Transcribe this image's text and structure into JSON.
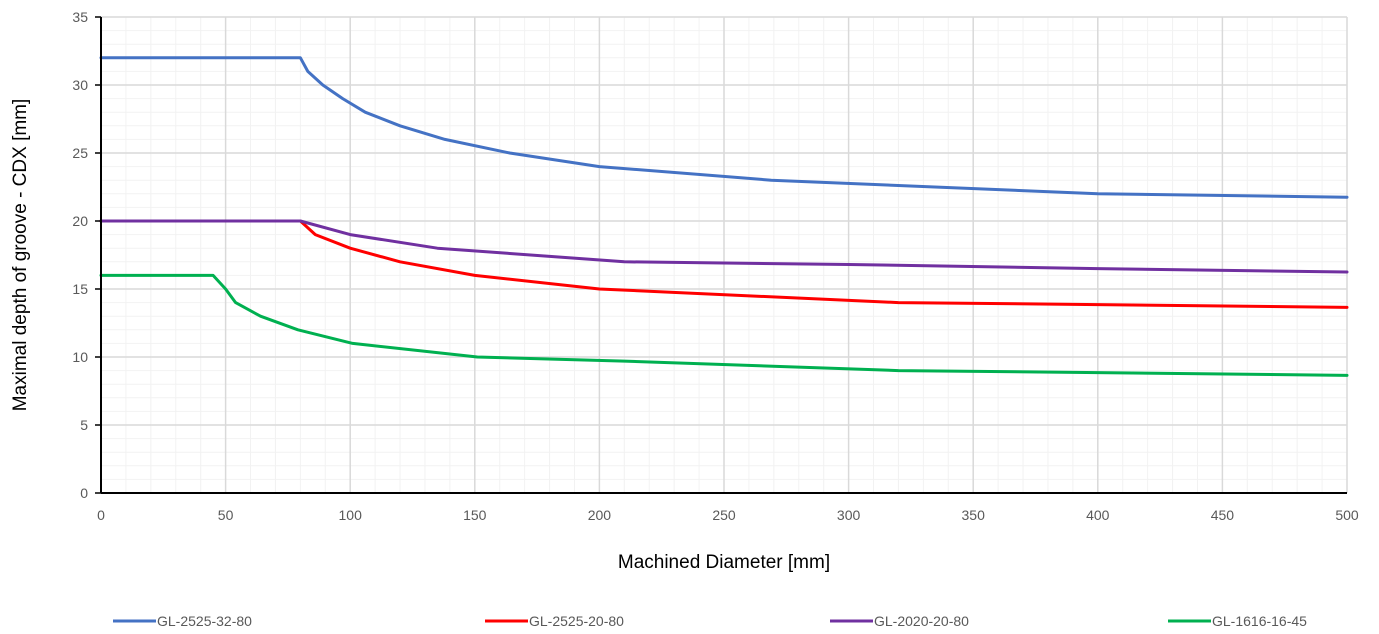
{
  "chart_data": {
    "type": "line",
    "title": "",
    "xlabel": "Machined Diameter [mm]",
    "ylabel": "Maximal depth of groove - CDX [mm]",
    "xlim": [
      0,
      500
    ],
    "ylim": [
      0,
      35
    ],
    "x_ticks": [
      "0",
      "50",
      "100",
      "150",
      "200",
      "250",
      "300",
      "350",
      "400",
      "450",
      "500"
    ],
    "y_ticks": [
      "0",
      "5",
      "10",
      "15",
      "20",
      "25",
      "30",
      "35"
    ],
    "grid": {
      "major": true,
      "minor": true
    },
    "legend_position": "bottom",
    "series": [
      {
        "name": "GL-2525-32-80",
        "color": "#4472C4",
        "points": [
          [
            0,
            32
          ],
          [
            80,
            32
          ],
          [
            83,
            31
          ],
          [
            89,
            30
          ],
          [
            97,
            29
          ],
          [
            106,
            28
          ],
          [
            120,
            27
          ],
          [
            138,
            26
          ],
          [
            164,
            25
          ],
          [
            200,
            24
          ],
          [
            269,
            23
          ],
          [
            400,
            22
          ],
          [
            500,
            21.75
          ]
        ]
      },
      {
        "name": "GL-2525-20-80",
        "color": "#FF0000",
        "points": [
          [
            0,
            20
          ],
          [
            80,
            20
          ],
          [
            86,
            19
          ],
          [
            100,
            18
          ],
          [
            120,
            17
          ],
          [
            150,
            16
          ],
          [
            200,
            15
          ],
          [
            320,
            14
          ],
          [
            400,
            13.85
          ],
          [
            500,
            13.65
          ]
        ]
      },
      {
        "name": "GL-2020-20-80",
        "color": "#7030A0",
        "points": [
          [
            0,
            20
          ],
          [
            80,
            20
          ],
          [
            100,
            19
          ],
          [
            135,
            18
          ],
          [
            210,
            17
          ],
          [
            300,
            16.8
          ],
          [
            400,
            16.5
          ],
          [
            500,
            16.25
          ]
        ]
      },
      {
        "name": "GL-1616-16-45",
        "color": "#00B050",
        "points": [
          [
            0,
            16
          ],
          [
            45,
            16
          ],
          [
            50,
            15
          ],
          [
            54,
            14
          ],
          [
            64,
            13
          ],
          [
            79,
            12
          ],
          [
            101,
            11
          ],
          [
            151,
            10
          ],
          [
            210,
            9.7
          ],
          [
            320,
            9.0
          ],
          [
            400,
            8.85
          ],
          [
            500,
            8.65
          ]
        ]
      }
    ]
  }
}
